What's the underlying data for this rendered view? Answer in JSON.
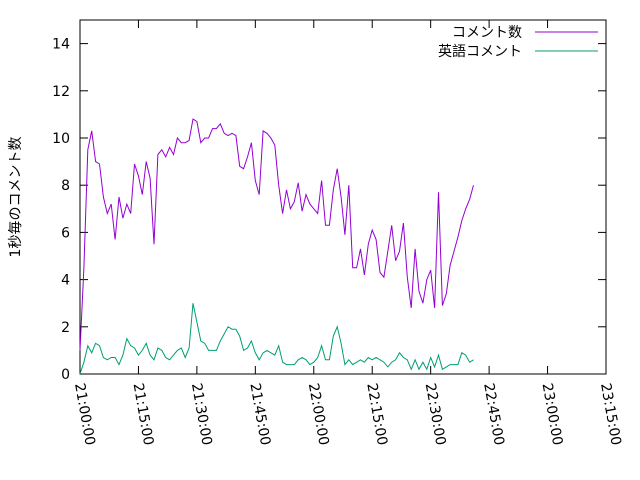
{
  "colors": {
    "comments": "#9400d3",
    "english": "#009e73",
    "axis": "#000000"
  },
  "chart_data": {
    "type": "line",
    "title": "",
    "xlabel": "",
    "ylabel": "1秒毎のコメント数",
    "ylim": [
      0,
      15
    ],
    "y_ticks": [
      "0",
      "2",
      "4",
      "6",
      "8",
      "10",
      "12",
      "14"
    ],
    "x_ticks": [
      "21:00:00",
      "21:15:00",
      "21:30:00",
      "21:45:00",
      "22:00:00",
      "22:15:00",
      "22:30:00",
      "22:45:00",
      "23:00:00",
      "23:15:00"
    ],
    "xlim": [
      "21:00:00",
      "23:15:00"
    ],
    "grid": false,
    "legend_position": "top-right",
    "series": [
      {
        "name": "コメント数",
        "color": "#9400d3",
        "points": [
          [
            "21:00:00",
            1.0
          ],
          [
            "21:01:00",
            4.5
          ],
          [
            "21:02:00",
            9.5
          ],
          [
            "21:03:00",
            10.3
          ],
          [
            "21:04:00",
            9.0
          ],
          [
            "21:05:00",
            8.9
          ],
          [
            "21:06:00",
            7.5
          ],
          [
            "21:07:00",
            6.8
          ],
          [
            "21:08:00",
            7.2
          ],
          [
            "21:09:00",
            5.7
          ],
          [
            "21:10:00",
            7.5
          ],
          [
            "21:11:00",
            6.6
          ],
          [
            "21:12:00",
            7.2
          ],
          [
            "21:13:00",
            6.8
          ],
          [
            "21:14:00",
            8.9
          ],
          [
            "21:15:00",
            8.4
          ],
          [
            "21:16:00",
            7.6
          ],
          [
            "21:17:00",
            9.0
          ],
          [
            "21:18:00",
            8.3
          ],
          [
            "21:19:00",
            5.5
          ],
          [
            "21:20:00",
            9.3
          ],
          [
            "21:21:00",
            9.5
          ],
          [
            "21:22:00",
            9.2
          ],
          [
            "21:23:00",
            9.6
          ],
          [
            "21:24:00",
            9.3
          ],
          [
            "21:25:00",
            10.0
          ],
          [
            "21:26:00",
            9.8
          ],
          [
            "21:27:00",
            9.8
          ],
          [
            "21:28:00",
            9.9
          ],
          [
            "21:29:00",
            10.8
          ],
          [
            "21:30:00",
            10.7
          ],
          [
            "21:31:00",
            9.8
          ],
          [
            "21:32:00",
            10.0
          ],
          [
            "21:33:00",
            10.0
          ],
          [
            "21:34:00",
            10.4
          ],
          [
            "21:35:00",
            10.4
          ],
          [
            "21:36:00",
            10.6
          ],
          [
            "21:37:00",
            10.2
          ],
          [
            "21:38:00",
            10.1
          ],
          [
            "21:39:00",
            10.2
          ],
          [
            "21:40:00",
            10.1
          ],
          [
            "21:41:00",
            8.8
          ],
          [
            "21:42:00",
            8.7
          ],
          [
            "21:43:00",
            9.2
          ],
          [
            "21:44:00",
            9.8
          ],
          [
            "21:45:00",
            8.2
          ],
          [
            "21:46:00",
            7.6
          ],
          [
            "21:47:00",
            10.3
          ],
          [
            "21:48:00",
            10.2
          ],
          [
            "21:49:00",
            10.0
          ],
          [
            "21:50:00",
            9.7
          ],
          [
            "21:51:00",
            8.0
          ],
          [
            "21:52:00",
            6.8
          ],
          [
            "21:53:00",
            7.8
          ],
          [
            "21:54:00",
            7.0
          ],
          [
            "21:55:00",
            7.3
          ],
          [
            "21:56:00",
            8.1
          ],
          [
            "21:57:00",
            6.9
          ],
          [
            "21:58:00",
            7.6
          ],
          [
            "21:59:00",
            7.2
          ],
          [
            "22:00:00",
            7.0
          ],
          [
            "22:01:00",
            6.8
          ],
          [
            "22:02:00",
            8.2
          ],
          [
            "22:03:00",
            6.3
          ],
          [
            "22:04:00",
            6.3
          ],
          [
            "22:05:00",
            7.8
          ],
          [
            "22:06:00",
            8.7
          ],
          [
            "22:07:00",
            7.5
          ],
          [
            "22:08:00",
            5.9
          ],
          [
            "22:09:00",
            8.0
          ],
          [
            "22:10:00",
            4.5
          ],
          [
            "22:11:00",
            4.5
          ],
          [
            "22:12:00",
            5.3
          ],
          [
            "22:13:00",
            4.2
          ],
          [
            "22:14:00",
            5.5
          ],
          [
            "22:15:00",
            6.1
          ],
          [
            "22:16:00",
            5.7
          ],
          [
            "22:17:00",
            4.3
          ],
          [
            "22:18:00",
            4.1
          ],
          [
            "22:19:00",
            5.2
          ],
          [
            "22:20:00",
            6.3
          ],
          [
            "22:21:00",
            4.8
          ],
          [
            "22:22:00",
            5.2
          ],
          [
            "22:23:00",
            6.4
          ],
          [
            "22:24:00",
            4.1
          ],
          [
            "22:25:00",
            2.8
          ],
          [
            "22:26:00",
            5.3
          ],
          [
            "22:27:00",
            3.5
          ],
          [
            "22:28:00",
            3.0
          ],
          [
            "22:29:00",
            4.0
          ],
          [
            "22:30:00",
            4.4
          ],
          [
            "22:31:00",
            2.8
          ],
          [
            "22:32:00",
            7.7
          ],
          [
            "22:33:00",
            2.9
          ],
          [
            "22:34:00",
            3.4
          ],
          [
            "22:35:00",
            4.6
          ],
          [
            "22:36:00",
            5.2
          ],
          [
            "22:37:00",
            5.8
          ],
          [
            "22:38:00",
            6.5
          ],
          [
            "22:39:00",
            7.0
          ],
          [
            "22:40:00",
            7.4
          ],
          [
            "22:41:00",
            8.0
          ]
        ]
      },
      {
        "name": "英語コメント",
        "color": "#009e73",
        "points": [
          [
            "21:00:00",
            0.0
          ],
          [
            "21:01:00",
            0.5
          ],
          [
            "21:02:00",
            1.2
          ],
          [
            "21:03:00",
            0.9
          ],
          [
            "21:04:00",
            1.3
          ],
          [
            "21:05:00",
            1.2
          ],
          [
            "21:06:00",
            0.7
          ],
          [
            "21:07:00",
            0.6
          ],
          [
            "21:08:00",
            0.7
          ],
          [
            "21:09:00",
            0.7
          ],
          [
            "21:10:00",
            0.4
          ],
          [
            "21:11:00",
            0.8
          ],
          [
            "21:12:00",
            1.5
          ],
          [
            "21:13:00",
            1.2
          ],
          [
            "21:14:00",
            1.1
          ],
          [
            "21:15:00",
            0.8
          ],
          [
            "21:16:00",
            1.0
          ],
          [
            "21:17:00",
            1.3
          ],
          [
            "21:18:00",
            0.8
          ],
          [
            "21:19:00",
            0.6
          ],
          [
            "21:20:00",
            1.1
          ],
          [
            "21:21:00",
            1.0
          ],
          [
            "21:22:00",
            0.7
          ],
          [
            "21:23:00",
            0.6
          ],
          [
            "21:24:00",
            0.8
          ],
          [
            "21:25:00",
            1.0
          ],
          [
            "21:26:00",
            1.1
          ],
          [
            "21:27:00",
            0.7
          ],
          [
            "21:28:00",
            1.1
          ],
          [
            "21:29:00",
            3.0
          ],
          [
            "21:30:00",
            2.2
          ],
          [
            "21:31:00",
            1.4
          ],
          [
            "21:32:00",
            1.3
          ],
          [
            "21:33:00",
            1.0
          ],
          [
            "21:34:00",
            1.0
          ],
          [
            "21:35:00",
            1.0
          ],
          [
            "21:36:00",
            1.4
          ],
          [
            "21:37:00",
            1.7
          ],
          [
            "21:38:00",
            2.0
          ],
          [
            "21:39:00",
            1.9
          ],
          [
            "21:40:00",
            1.9
          ],
          [
            "21:41:00",
            1.6
          ],
          [
            "21:42:00",
            1.0
          ],
          [
            "21:43:00",
            1.1
          ],
          [
            "21:44:00",
            1.4
          ],
          [
            "21:45:00",
            0.9
          ],
          [
            "21:46:00",
            0.6
          ],
          [
            "21:47:00",
            0.9
          ],
          [
            "21:48:00",
            1.0
          ],
          [
            "21:49:00",
            0.9
          ],
          [
            "21:50:00",
            0.8
          ],
          [
            "21:51:00",
            1.2
          ],
          [
            "21:52:00",
            0.5
          ],
          [
            "21:53:00",
            0.4
          ],
          [
            "21:54:00",
            0.4
          ],
          [
            "21:55:00",
            0.4
          ],
          [
            "21:56:00",
            0.6
          ],
          [
            "21:57:00",
            0.7
          ],
          [
            "21:58:00",
            0.6
          ],
          [
            "21:59:00",
            0.4
          ],
          [
            "22:00:00",
            0.5
          ],
          [
            "22:01:00",
            0.7
          ],
          [
            "22:02:00",
            1.2
          ],
          [
            "22:03:00",
            0.6
          ],
          [
            "22:04:00",
            0.6
          ],
          [
            "22:05:00",
            1.6
          ],
          [
            "22:06:00",
            2.0
          ],
          [
            "22:07:00",
            1.3
          ],
          [
            "22:08:00",
            0.4
          ],
          [
            "22:09:00",
            0.6
          ],
          [
            "22:10:00",
            0.4
          ],
          [
            "22:11:00",
            0.5
          ],
          [
            "22:12:00",
            0.6
          ],
          [
            "22:13:00",
            0.5
          ],
          [
            "22:14:00",
            0.7
          ],
          [
            "22:15:00",
            0.6
          ],
          [
            "22:16:00",
            0.7
          ],
          [
            "22:17:00",
            0.6
          ],
          [
            "22:18:00",
            0.5
          ],
          [
            "22:19:00",
            0.3
          ],
          [
            "22:20:00",
            0.5
          ],
          [
            "22:21:00",
            0.6
          ],
          [
            "22:22:00",
            0.9
          ],
          [
            "22:23:00",
            0.7
          ],
          [
            "22:24:00",
            0.6
          ],
          [
            "22:25:00",
            0.2
          ],
          [
            "22:26:00",
            0.6
          ],
          [
            "22:27:00",
            0.2
          ],
          [
            "22:28:00",
            0.5
          ],
          [
            "22:29:00",
            0.2
          ],
          [
            "22:30:00",
            0.7
          ],
          [
            "22:31:00",
            0.3
          ],
          [
            "22:32:00",
            0.8
          ],
          [
            "22:33:00",
            0.2
          ],
          [
            "22:34:00",
            0.3
          ],
          [
            "22:35:00",
            0.4
          ],
          [
            "22:36:00",
            0.4
          ],
          [
            "22:37:00",
            0.4
          ],
          [
            "22:38:00",
            0.9
          ],
          [
            "22:39:00",
            0.8
          ],
          [
            "22:40:00",
            0.5
          ],
          [
            "22:41:00",
            0.6
          ]
        ]
      }
    ]
  }
}
